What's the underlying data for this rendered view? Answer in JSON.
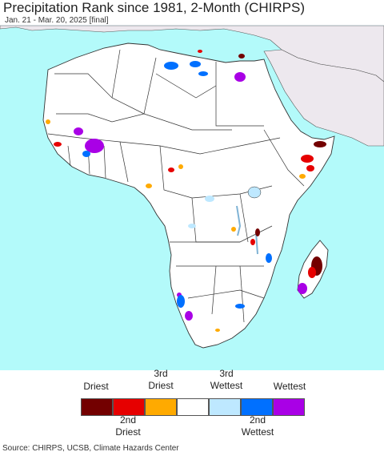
{
  "title": "Precipitation Rank since 1981, 2-Month (CHIRPS)",
  "subtitle": "Jan. 21 - Mar. 20, 2025 [final]",
  "source": "Source: CHIRPS, UCSB, Climate Hazards Center",
  "colors": {
    "ocean": "#b3fafa",
    "land": "#ffffff",
    "non_africa_land": "#ede8ee",
    "border": "#333333"
  },
  "legend": {
    "top_labels": [
      {
        "id": "driest",
        "text": "Driest"
      },
      {
        "id": "third-driest",
        "text": "3rd\nDriest"
      },
      {
        "id": "third-wettest",
        "text": "3rd\nWettest"
      },
      {
        "id": "wettest",
        "text": "Wettest"
      }
    ],
    "bottom_labels": [
      {
        "id": "second-driest",
        "text": "2nd\nDriest"
      },
      {
        "id": "second-wettest",
        "text": "2nd\nWettest"
      }
    ],
    "classes": [
      {
        "name": "driest",
        "color": "#730000"
      },
      {
        "name": "second-driest",
        "color": "#e60000"
      },
      {
        "name": "third-driest",
        "color": "#ffaa00"
      },
      {
        "name": "normal",
        "color": "#ffffff"
      },
      {
        "name": "third-wettest",
        "color": "#bee8ff"
      },
      {
        "name": "second-wettest",
        "color": "#0070ff"
      },
      {
        "name": "wettest",
        "color": "#a900e6"
      }
    ]
  }
}
